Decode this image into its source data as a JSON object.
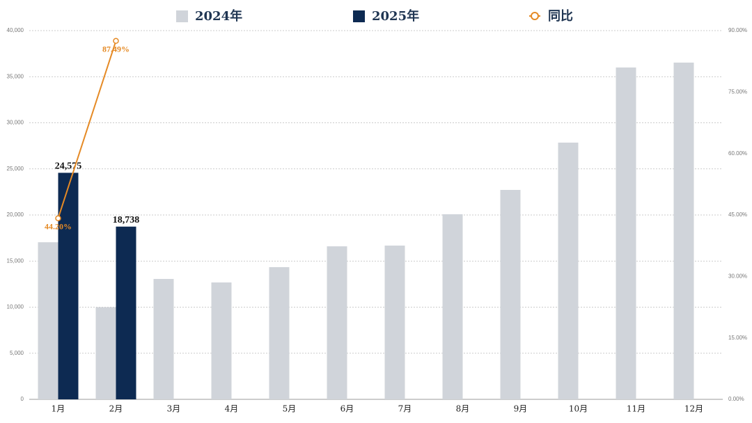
{
  "chart_data": {
    "type": "bar",
    "grid": true,
    "categories": [
      "1月",
      "2月",
      "3月",
      "4月",
      "5月",
      "6月",
      "7月",
      "8月",
      "9月",
      "10月",
      "11月",
      "12月"
    ],
    "series": [
      {
        "name": "2024年",
        "color": "#d0d4da",
        "values": [
          17042,
          9994,
          13060,
          12680,
          14340,
          16600,
          16680,
          20080,
          22720,
          27850,
          36000,
          36530
        ]
      },
      {
        "name": "2025年",
        "color": "#0d2a52",
        "values": [
          24575,
          18738,
          null,
          null,
          null,
          null,
          null,
          null,
          null,
          null,
          null,
          null
        ],
        "value_labels": [
          "24,575",
          "18,738",
          null,
          null,
          null,
          null,
          null,
          null,
          null,
          null,
          null,
          null
        ]
      },
      {
        "name": "同比",
        "color": "#e58a25",
        "type": "line",
        "axis": "y2",
        "values": [
          44.2,
          87.49,
          null,
          null,
          null,
          null,
          null,
          null,
          null,
          null,
          null,
          null
        ],
        "value_labels": [
          "44.20%",
          "87.49%",
          null,
          null,
          null,
          null,
          null,
          null,
          null,
          null,
          null,
          null
        ]
      }
    ],
    "ylim": [
      0,
      40000
    ],
    "yticks": [
      0,
      {
        "value": 5000,
        "label": "5,000"
      },
      {
        "value": 10000,
        "label": "10,000"
      },
      {
        "value": 15000,
        "label": "15,000"
      },
      {
        "value": 20000,
        "label": "20,000"
      },
      {
        "value": 25000,
        "label": "25,000"
      },
      {
        "value": 30000,
        "label": "30,000"
      },
      {
        "value": 35000,
        "label": "35,000"
      },
      {
        "value": 40000,
        "label": "40,000"
      }
    ],
    "y2lim": [
      0,
      90
    ],
    "y2ticks": [
      {
        "value": 0,
        "label": "0.00%"
      },
      {
        "value": 15,
        "label": "15.00%"
      },
      {
        "value": 30,
        "label": "30.00%"
      },
      {
        "value": 45,
        "label": "45.00%"
      },
      {
        "value": 60,
        "label": "60.00%"
      },
      {
        "value": 75,
        "label": "75.00%"
      },
      {
        "value": 90,
        "label": "90.00%"
      }
    ]
  }
}
